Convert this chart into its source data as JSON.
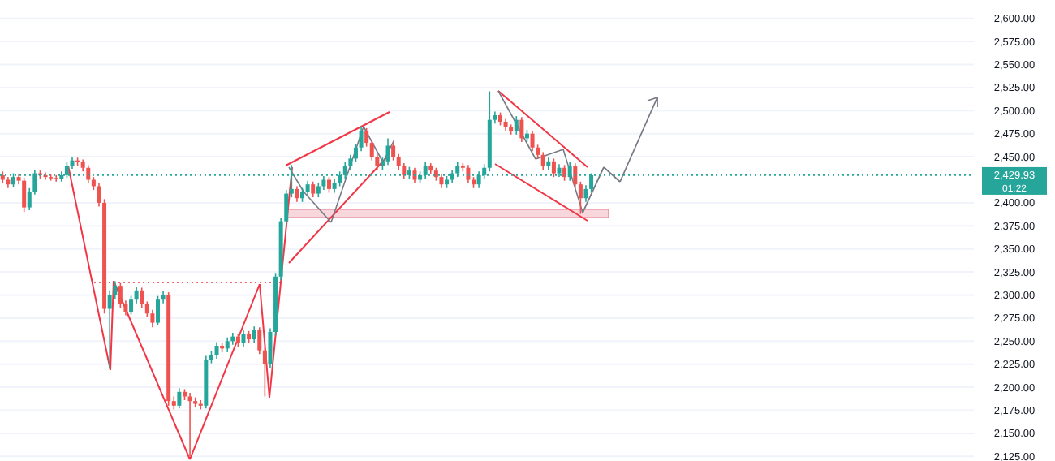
{
  "chart_data": {
    "type": "candlestick",
    "categories": [
      null,
      null,
      null,
      null,
      null,
      null,
      null,
      null,
      null,
      null,
      null,
      null,
      null,
      null,
      null,
      null,
      null,
      null,
      null,
      null,
      null,
      null,
      null,
      null,
      null,
      null,
      null,
      null,
      null,
      null,
      null,
      null,
      null,
      null,
      null,
      null,
      null,
      null,
      null,
      null,
      null,
      null,
      null,
      null,
      null,
      null,
      null,
      null,
      null,
      null,
      null,
      null,
      null,
      null,
      null,
      null,
      null,
      null,
      null,
      null,
      null,
      null,
      null,
      null,
      null,
      null,
      null,
      null,
      null,
      null,
      null,
      null,
      null,
      null,
      null,
      null,
      null,
      null,
      null,
      null,
      null,
      null,
      null,
      null,
      null,
      null,
      null,
      null,
      null,
      null,
      null,
      null,
      null,
      null,
      null,
      null,
      null,
      null,
      null,
      null,
      null,
      null,
      null,
      null,
      null,
      null,
      null,
      null,
      null,
      null,
      null,
      null,
      null,
      null,
      null,
      null,
      null,
      null,
      null,
      null,
      null,
      null,
      null,
      null,
      null,
      null,
      null,
      null,
      null,
      null,
      null,
      null,
      null,
      null,
      null,
      null,
      null,
      null,
      null,
      null,
      null,
      null,
      null,
      null,
      null,
      null,
      null,
      null,
      null,
      null,
      null,
      null,
      null,
      null,
      null,
      null,
      null,
      null,
      null,
      null,
      null,
      null,
      null,
      null,
      null,
      null,
      null,
      null,
      null,
      null,
      null,
      null,
      null,
      null,
      null,
      null,
      null,
      null,
      null,
      null,
      null,
      null
    ],
    "ohlc": [
      [
        2430,
        2434,
        2421,
        2425
      ],
      [
        2425,
        2428,
        2416,
        2420
      ],
      [
        2420,
        2432,
        2417,
        2428
      ],
      [
        2428,
        2431,
        2420,
        2424
      ],
      [
        2424,
        2427,
        2390,
        2395
      ],
      [
        2395,
        2416,
        2392,
        2412
      ],
      [
        2412,
        2436,
        2409,
        2432
      ],
      [
        2432,
        2435,
        2426,
        2430
      ],
      [
        2430,
        2433,
        2425,
        2428
      ],
      [
        2428,
        2431,
        2424,
        2427
      ],
      [
        2427,
        2430,
        2423,
        2426
      ],
      [
        2426,
        2434,
        2423,
        2430
      ],
      [
        2430,
        2444,
        2427,
        2440
      ],
      [
        2440,
        2450,
        2437,
        2446
      ],
      [
        2446,
        2449,
        2440,
        2444
      ],
      [
        2444,
        2447,
        2434,
        2438
      ],
      [
        2438,
        2441,
        2421,
        2425
      ],
      [
        2425,
        2428,
        2414,
        2418
      ],
      [
        2418,
        2421,
        2396,
        2400
      ],
      [
        2400,
        2404,
        2280,
        2285
      ],
      [
        2285,
        2305,
        2220,
        2300
      ],
      [
        2300,
        2315,
        2296,
        2310
      ],
      [
        2310,
        2313,
        2286,
        2290
      ],
      [
        2290,
        2294,
        2278,
        2282
      ],
      [
        2282,
        2299,
        2279,
        2295
      ],
      [
        2295,
        2309,
        2291,
        2305
      ],
      [
        2305,
        2308,
        2286,
        2290
      ],
      [
        2290,
        2293,
        2276,
        2280
      ],
      [
        2280,
        2284,
        2265,
        2270
      ],
      [
        2270,
        2299,
        2267,
        2295
      ],
      [
        2295,
        2304,
        2291,
        2300
      ],
      [
        2300,
        2303,
        2180,
        2185
      ],
      [
        2185,
        2190,
        2176,
        2180
      ],
      [
        2180,
        2199,
        2177,
        2195
      ],
      [
        2195,
        2198,
        2186,
        2190
      ],
      [
        2190,
        2194,
        2125,
        2185
      ],
      [
        2185,
        2189,
        2178,
        2182
      ],
      [
        2182,
        2186,
        2176,
        2180
      ],
      [
        2180,
        2234,
        2177,
        2230
      ],
      [
        2230,
        2239,
        2226,
        2235
      ],
      [
        2235,
        2249,
        2231,
        2245
      ],
      [
        2245,
        2248,
        2238,
        2242
      ],
      [
        2242,
        2254,
        2238,
        2250
      ],
      [
        2250,
        2259,
        2246,
        2255
      ],
      [
        2255,
        2258,
        2244,
        2248
      ],
      [
        2248,
        2262,
        2244,
        2258
      ],
      [
        2258,
        2261,
        2248,
        2252
      ],
      [
        2252,
        2266,
        2248,
        2262
      ],
      [
        2262,
        2265,
        2236,
        2240
      ],
      [
        2240,
        2243,
        2190,
        2225
      ],
      [
        2225,
        2264,
        2221,
        2260
      ],
      [
        2260,
        2324,
        2256,
        2320
      ],
      [
        2320,
        2384,
        2316,
        2380
      ],
      [
        2380,
        2414,
        2376,
        2410
      ],
      [
        2410,
        2441,
        2406,
        2415
      ],
      [
        2415,
        2418,
        2401,
        2405
      ],
      [
        2405,
        2416,
        2401,
        2412
      ],
      [
        2412,
        2424,
        2408,
        2420
      ],
      [
        2420,
        2423,
        2406,
        2410
      ],
      [
        2410,
        2422,
        2406,
        2418
      ],
      [
        2418,
        2429,
        2414,
        2425
      ],
      [
        2425,
        2428,
        2411,
        2415
      ],
      [
        2415,
        2426,
        2411,
        2422
      ],
      [
        2422,
        2434,
        2418,
        2430
      ],
      [
        2430,
        2444,
        2426,
        2440
      ],
      [
        2440,
        2452,
        2436,
        2448
      ],
      [
        2448,
        2464,
        2444,
        2460
      ],
      [
        2460,
        2483,
        2456,
        2478
      ],
      [
        2478,
        2481,
        2461,
        2465
      ],
      [
        2465,
        2468,
        2446,
        2450
      ],
      [
        2450,
        2453,
        2436,
        2440
      ],
      [
        2440,
        2449,
        2436,
        2445
      ],
      [
        2445,
        2470,
        2441,
        2462
      ],
      [
        2462,
        2465,
        2446,
        2450
      ],
      [
        2450,
        2453,
        2436,
        2440
      ],
      [
        2440,
        2443,
        2426,
        2430
      ],
      [
        2430,
        2439,
        2426,
        2435
      ],
      [
        2435,
        2438,
        2421,
        2425
      ],
      [
        2425,
        2434,
        2421,
        2430
      ],
      [
        2430,
        2444,
        2426,
        2440
      ],
      [
        2440,
        2443,
        2431,
        2435
      ],
      [
        2435,
        2438,
        2424,
        2428
      ],
      [
        2428,
        2431,
        2416,
        2420
      ],
      [
        2420,
        2429,
        2416,
        2425
      ],
      [
        2425,
        2436,
        2421,
        2432
      ],
      [
        2432,
        2444,
        2428,
        2440
      ],
      [
        2440,
        2443,
        2434,
        2438
      ],
      [
        2438,
        2441,
        2421,
        2425
      ],
      [
        2425,
        2428,
        2416,
        2420
      ],
      [
        2420,
        2434,
        2416,
        2430
      ],
      [
        2430,
        2442,
        2426,
        2438
      ],
      [
        2438,
        2521,
        2434,
        2490
      ],
      [
        2490,
        2499,
        2486,
        2495
      ],
      [
        2495,
        2498,
        2484,
        2488
      ],
      [
        2488,
        2491,
        2478,
        2482
      ],
      [
        2482,
        2485,
        2474,
        2478
      ],
      [
        2478,
        2494,
        2474,
        2490
      ],
      [
        2490,
        2493,
        2466,
        2470
      ],
      [
        2470,
        2479,
        2466,
        2475
      ],
      [
        2475,
        2478,
        2456,
        2460
      ],
      [
        2460,
        2463,
        2448,
        2452
      ],
      [
        2452,
        2455,
        2436,
        2440
      ],
      [
        2440,
        2449,
        2436,
        2445
      ],
      [
        2445,
        2448,
        2428,
        2432
      ],
      [
        2432,
        2442,
        2428,
        2438
      ],
      [
        2438,
        2441,
        2424,
        2428
      ],
      [
        2428,
        2444,
        2424,
        2440
      ],
      [
        2440,
        2443,
        2416,
        2420
      ],
      [
        2420,
        2423,
        2388,
        2405
      ],
      [
        2405,
        2419,
        2401,
        2415
      ],
      [
        2415,
        2432,
        2411,
        2429.93
      ],
      null,
      null,
      null,
      null,
      null,
      null,
      null,
      null,
      null,
      null,
      null,
      null,
      null,
      null,
      null,
      null,
      null,
      null,
      null,
      null,
      null,
      null,
      null,
      null,
      null,
      null,
      null,
      null,
      null,
      null,
      null,
      null,
      null,
      null,
      null,
      null,
      null,
      null,
      null,
      null,
      null,
      null,
      null,
      null,
      null,
      null,
      null,
      null,
      null,
      null,
      null,
      null,
      null,
      null,
      null,
      null,
      null,
      null,
      null,
      null,
      null,
      null,
      null,
      null,
      null,
      null,
      null,
      null,
      null,
      null,
      null
    ],
    "colors": [
      "#ef5350",
      "#ef5350",
      "#26a69a",
      "#ef5350",
      "#ef5350",
      "#26a69a",
      "#26a69a",
      "#ef5350",
      "#ef5350",
      "#ef5350",
      "#ef5350",
      "#26a69a",
      "#26a69a",
      "#26a69a",
      "#ef5350",
      "#ef5350",
      "#ef5350",
      "#ef5350",
      "#ef5350",
      "#ef5350",
      "#26a69a",
      "#26a69a",
      "#ef5350",
      "#ef5350",
      "#26a69a",
      "#26a69a",
      "#ef5350",
      "#ef5350",
      "#ef5350",
      "#26a69a",
      "#26a69a",
      "#ef5350",
      "#ef5350",
      "#26a69a",
      "#ef5350",
      "#ef5350",
      "#ef5350",
      "#ef5350",
      "#26a69a",
      "#26a69a",
      "#26a69a",
      "#ef5350",
      "#26a69a",
      "#26a69a",
      "#ef5350",
      "#26a69a",
      "#ef5350",
      "#26a69a",
      "#ef5350",
      "#ef5350",
      "#26a69a",
      "#26a69a",
      "#26a69a",
      "#26a69a",
      "#26a69a",
      "#ef5350",
      "#26a69a",
      "#26a69a",
      "#ef5350",
      "#26a69a",
      "#26a69a",
      "#ef5350",
      "#26a69a",
      "#26a69a",
      "#26a69a",
      "#26a69a",
      "#26a69a",
      "#26a69a",
      "#ef5350",
      "#ef5350",
      "#ef5350",
      "#26a69a",
      "#26a69a",
      "#ef5350",
      "#ef5350",
      "#ef5350",
      "#26a69a",
      "#ef5350",
      "#26a69a",
      "#26a69a",
      "#ef5350",
      "#ef5350",
      "#ef5350",
      "#26a69a",
      "#26a69a",
      "#26a69a",
      "#ef5350",
      "#ef5350",
      "#ef5350",
      "#26a69a",
      "#26a69a",
      "#26a69a",
      "#26a69a",
      "#ef5350",
      "#ef5350",
      "#ef5350",
      "#26a69a",
      "#ef5350",
      "#26a69a",
      "#ef5350",
      "#ef5350",
      "#ef5350",
      "#26a69a",
      "#ef5350",
      "#26a69a",
      "#ef5350",
      "#26a69a",
      "#ef5350",
      "#ef5350",
      "#26a69a",
      "#26a69a",
      null,
      null,
      null,
      null,
      null,
      null,
      null,
      null,
      null,
      null,
      null,
      null,
      null,
      null,
      null,
      null,
      null,
      null,
      null,
      null,
      null,
      null,
      null,
      null,
      null,
      null,
      null,
      null,
      null,
      null,
      null,
      null,
      null,
      null,
      null,
      null,
      null,
      null,
      null,
      null,
      null,
      null,
      null,
      null,
      null,
      null,
      null,
      null,
      null,
      null,
      null,
      null,
      null,
      null,
      null,
      null,
      null,
      null,
      null,
      null,
      null,
      null,
      null,
      null,
      null,
      null,
      null,
      null,
      null,
      null,
      null
    ],
    "ylim": [
      2120,
      2620
    ],
    "yticks": [
      {
        "value": 2125,
        "label": "2,125.00"
      },
      {
        "value": 2150,
        "label": "2,150.00"
      },
      {
        "value": 2175,
        "label": "2,175.00"
      },
      {
        "value": 2200,
        "label": "2,200.00"
      },
      {
        "value": 2225,
        "label": "2,225.00"
      },
      {
        "value": 2250,
        "label": "2,250.00"
      },
      {
        "value": 2275,
        "label": "2,275.00"
      },
      {
        "value": 2300,
        "label": "2,300.00"
      },
      {
        "value": 2325,
        "label": "2,325.00"
      },
      {
        "value": 2350,
        "label": "2,350.00"
      },
      {
        "value": 2375,
        "label": "2,375.00"
      },
      {
        "value": 2400,
        "label": "2,400.00"
      },
      {
        "value": 2450,
        "label": "2,450.00"
      },
      {
        "value": 2475,
        "label": "2,475.00"
      },
      {
        "value": 2500,
        "label": "2,500.00"
      },
      {
        "value": 2525,
        "label": "2,525.00"
      },
      {
        "value": 2550,
        "label": "2,550.00"
      },
      {
        "value": 2575,
        "label": "2,575.00"
      },
      {
        "value": 2600,
        "label": "2,600.00"
      }
    ],
    "grid": "y",
    "ref_lines": [
      {
        "axis": "y",
        "value": 2429.93,
        "label": "2,429.93",
        "color": "#26a69a",
        "line_style": "dotted"
      }
    ],
    "annotations": [
      "01:22"
    ]
  }
}
